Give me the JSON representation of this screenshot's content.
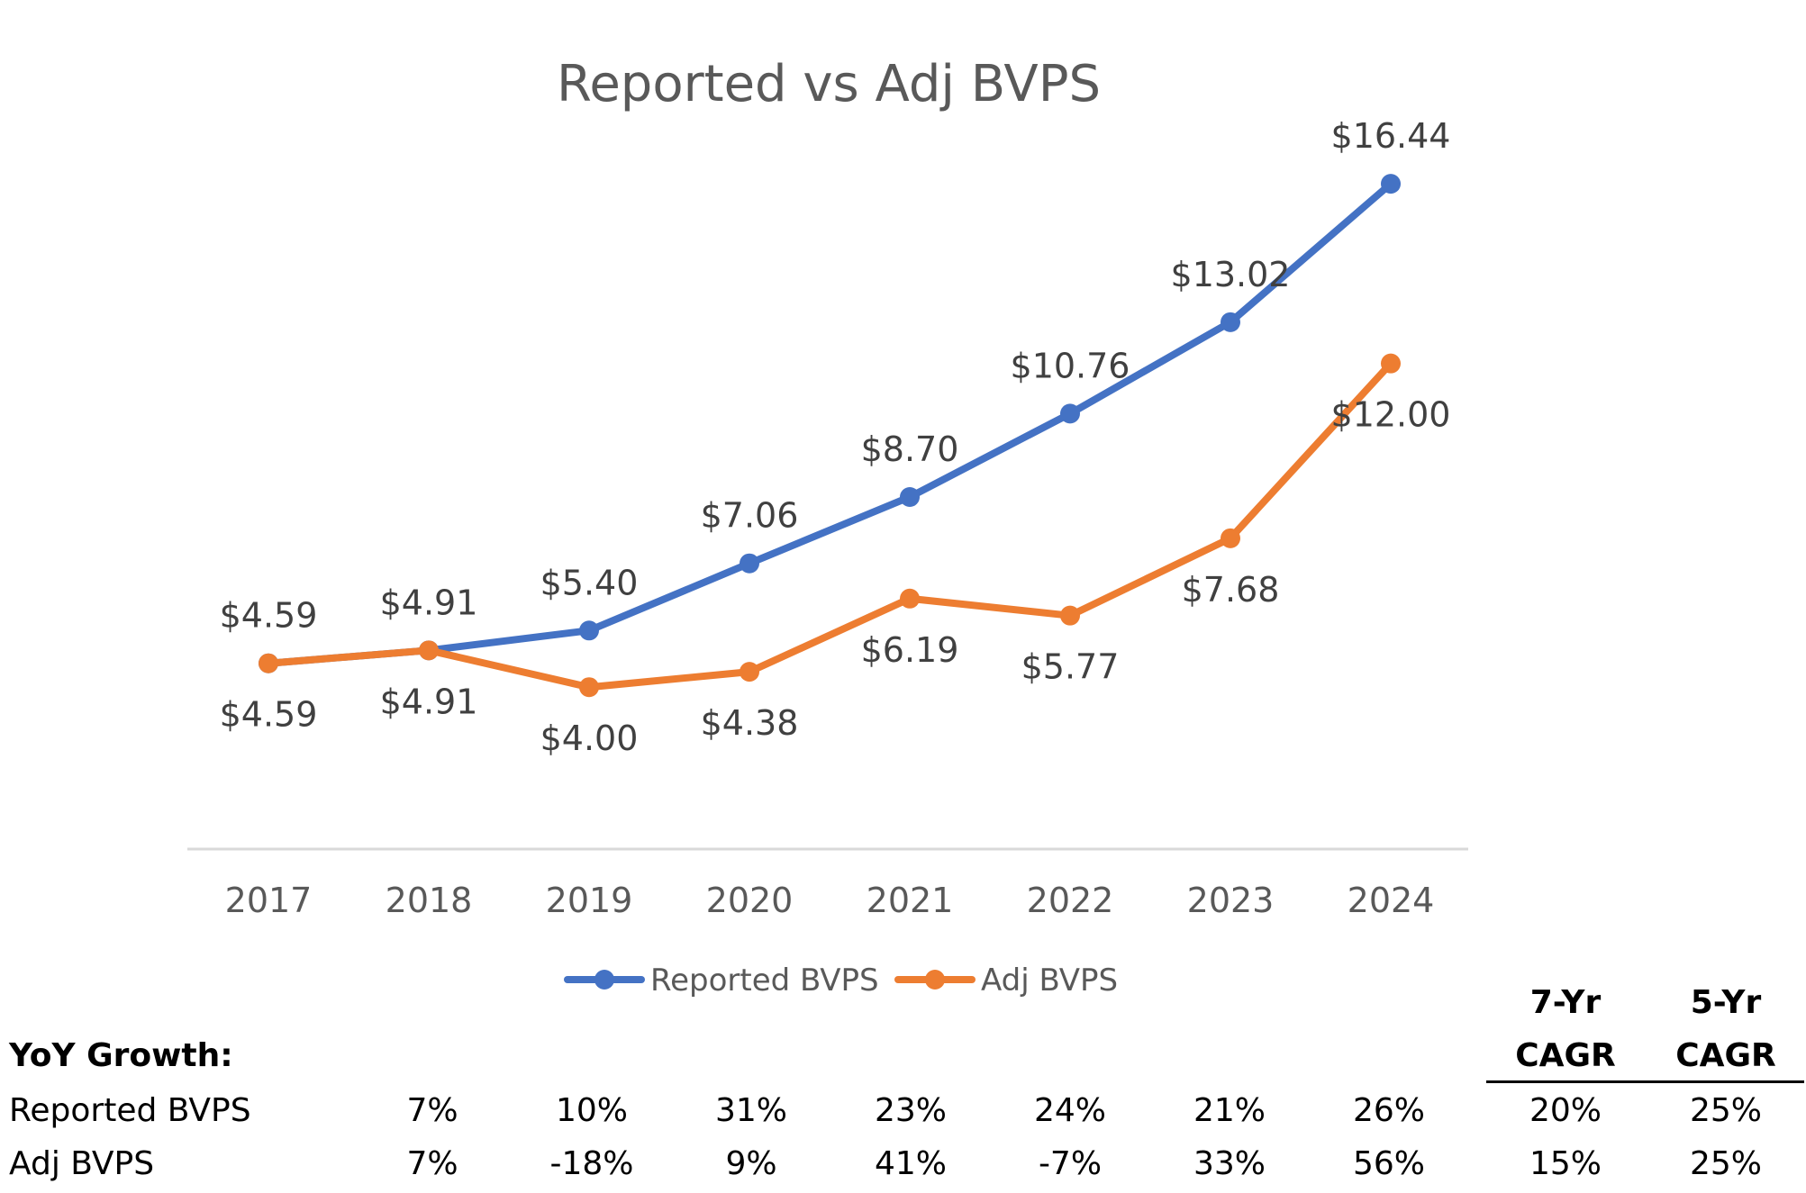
{
  "chart_data": {
    "type": "line",
    "title": "Reported vs Adj BVPS",
    "categories": [
      "2017",
      "2018",
      "2019",
      "2020",
      "2021",
      "2022",
      "2023",
      "2024"
    ],
    "series": [
      {
        "name": "Reported BVPS",
        "color": "#4472C4",
        "values": [
          4.59,
          4.91,
          5.4,
          7.06,
          8.7,
          10.76,
          13.02,
          16.44
        ],
        "labels": [
          "$4.59",
          "$4.91",
          "$5.40",
          "$7.06",
          "$8.70",
          "$10.76",
          "$13.02",
          "$16.44"
        ],
        "label_position": "above"
      },
      {
        "name": "Adj BVPS",
        "color": "#ED7D31",
        "values": [
          4.59,
          4.91,
          4.0,
          4.38,
          6.19,
          5.77,
          7.68,
          12.0
        ],
        "labels": [
          "$4.59",
          "$4.91",
          "$4.00",
          "$4.38",
          "$6.19",
          "$5.77",
          "$7.68",
          "$12.00"
        ],
        "label_position": "below"
      }
    ],
    "ylim": [
      0,
      18
    ],
    "grid": false,
    "legend": "bottom"
  },
  "table": {
    "section_label": "YoY Growth:",
    "cagr_headers": [
      {
        "line1": "7-Yr",
        "line2": "CAGR"
      },
      {
        "line1": "5-Yr",
        "line2": "CAGR"
      }
    ],
    "rows": [
      {
        "label": "Reported BVPS",
        "yoy": [
          "7%",
          "10%",
          "31%",
          "23%",
          "24%",
          "21%",
          "26%"
        ],
        "cagr": [
          "20%",
          "25%"
        ]
      },
      {
        "label": "Adj BVPS",
        "yoy": [
          "7%",
          "-18%",
          "9%",
          "41%",
          "-7%",
          "33%",
          "56%"
        ],
        "cagr": [
          "15%",
          "25%"
        ]
      }
    ]
  }
}
